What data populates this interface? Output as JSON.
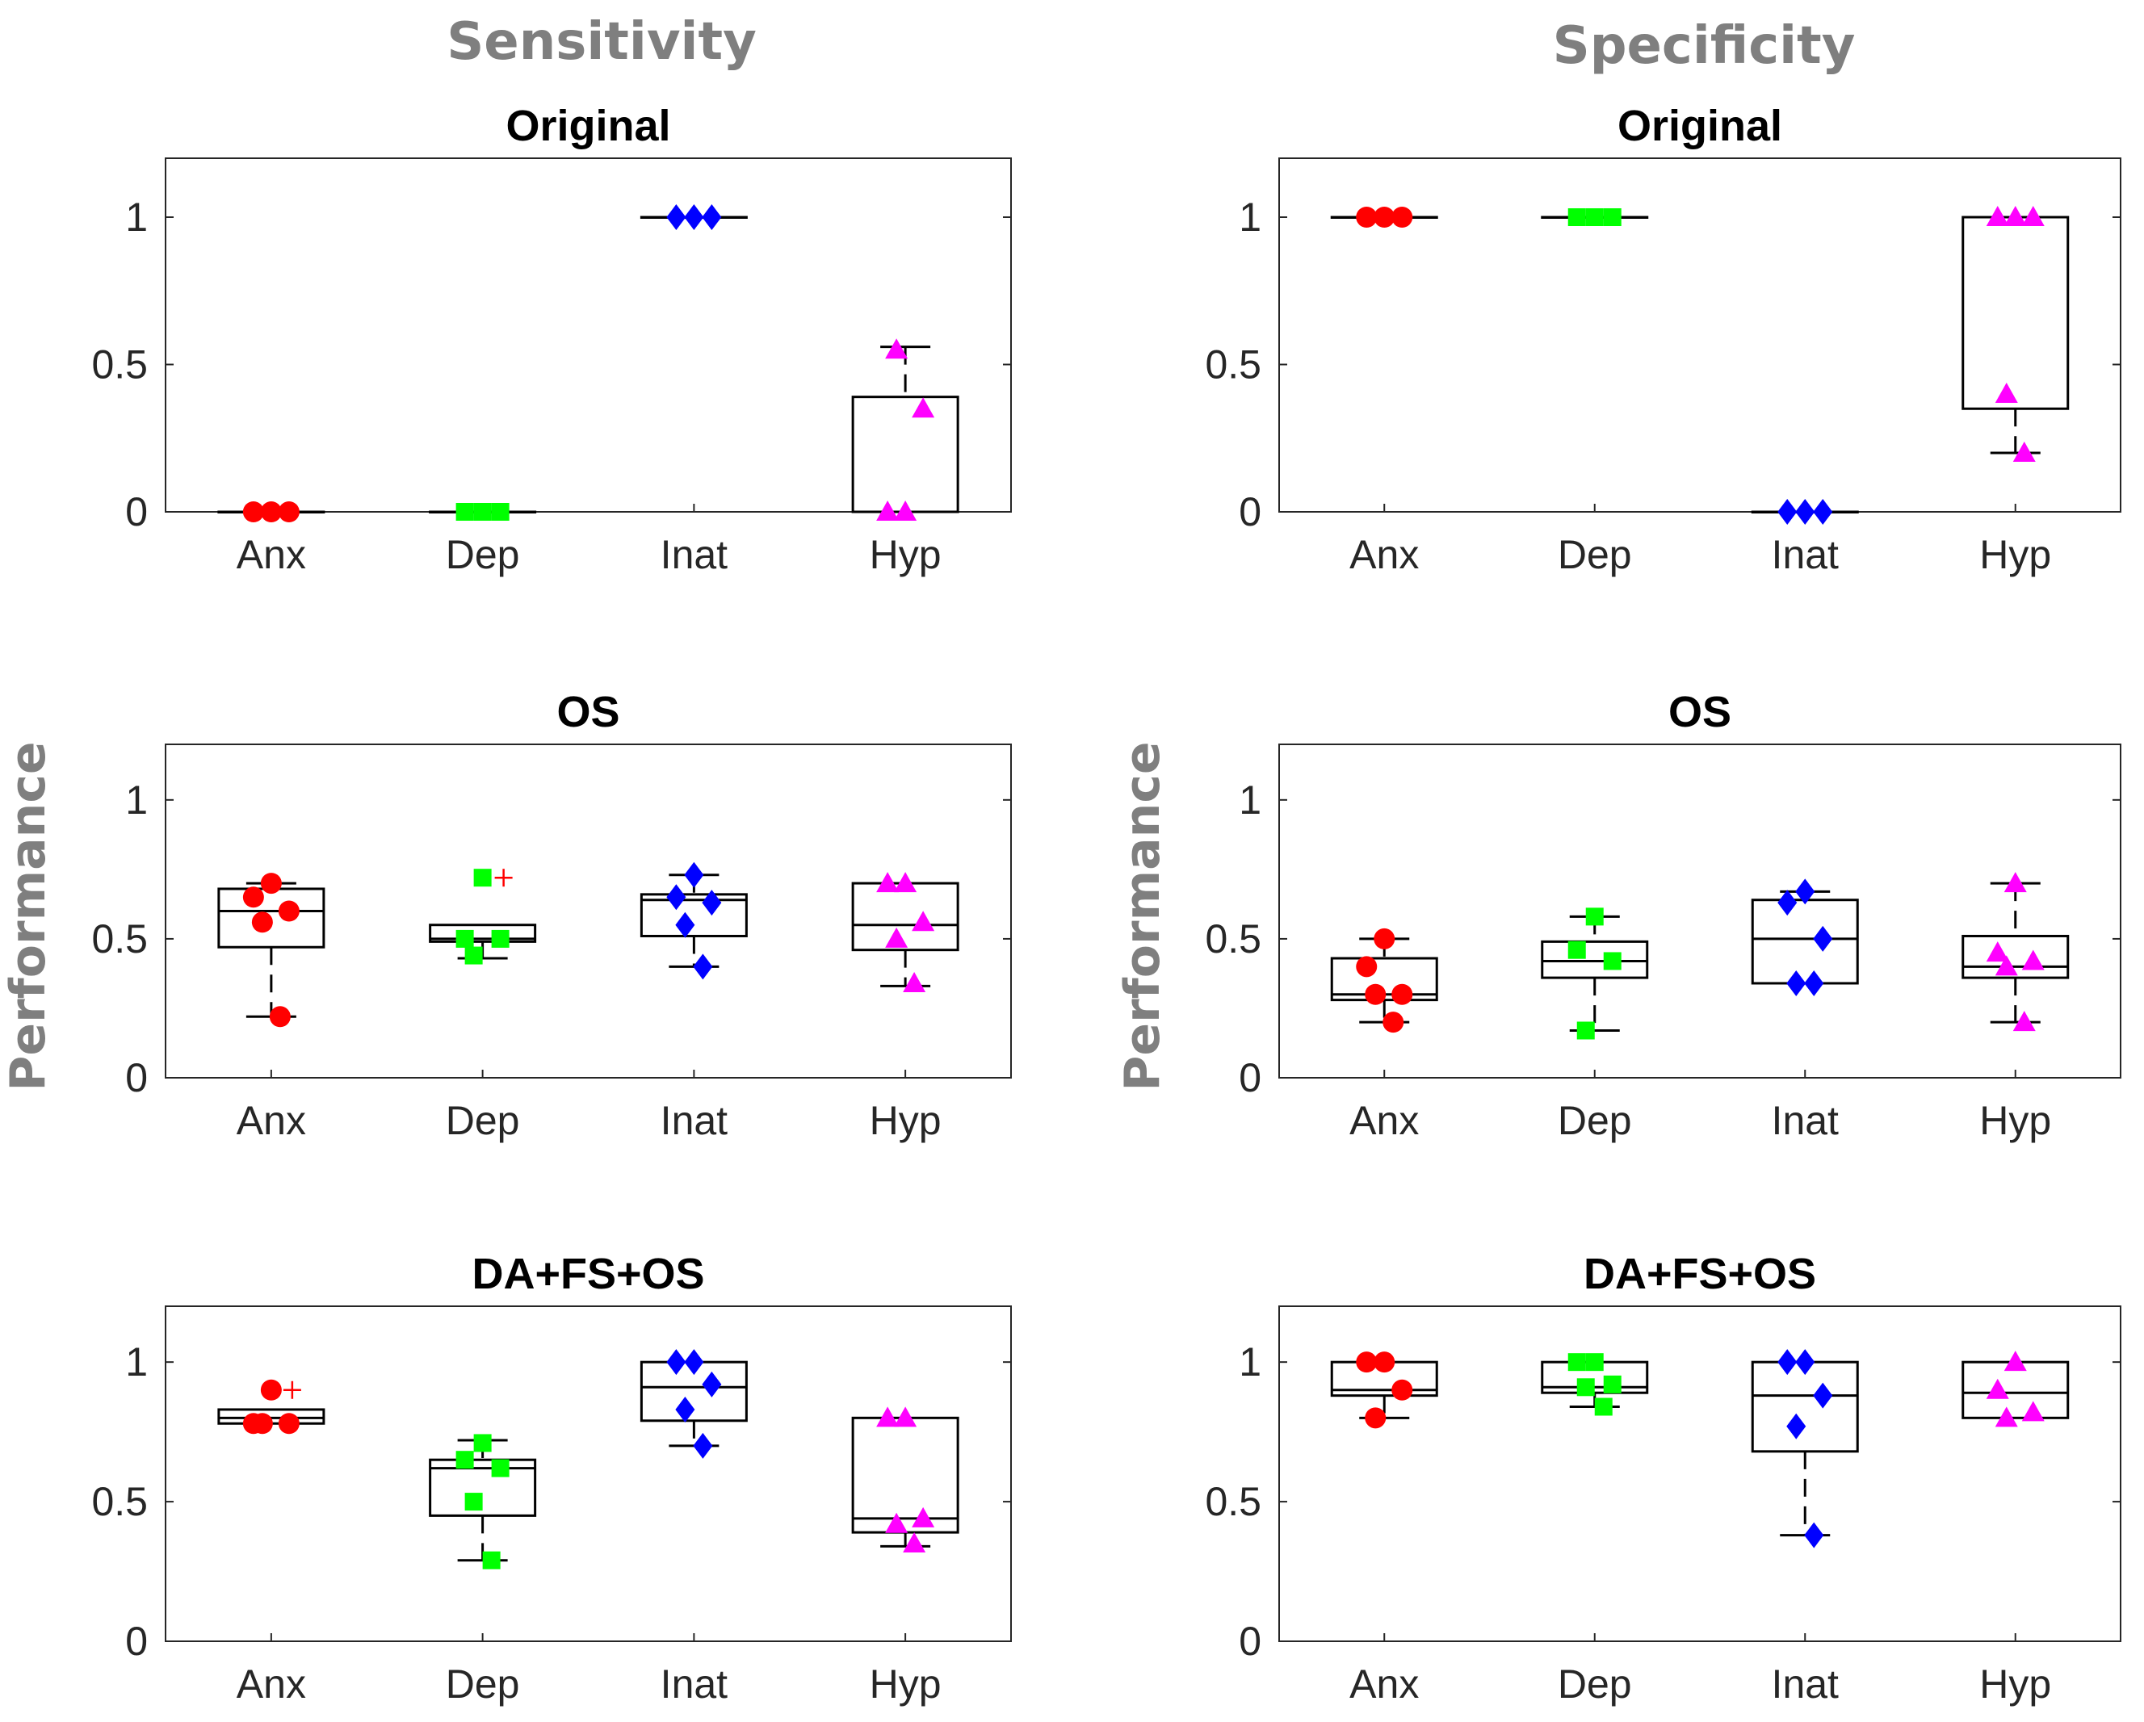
{
  "figure": {
    "column_titles": [
      "Sensitivity",
      "Specificity"
    ],
    "row_ylabels": [
      "",
      "Performance",
      ""
    ]
  },
  "chart_data": [
    {
      "type": "box",
      "title": "Original",
      "ylabel": "",
      "categories": [
        "Anx",
        "Dep",
        "Inat",
        "Hyp"
      ],
      "ylim": [
        0,
        1.2
      ],
      "yticks": [
        0,
        0.5,
        1
      ],
      "ytick_labels": [
        "0",
        "0.5",
        "1"
      ],
      "series": [
        {
          "name": "Anx",
          "color": "#ff0000",
          "marker": "circle",
          "points": [
            0,
            0,
            0
          ],
          "box": {
            "q1": 0,
            "median": 0,
            "q3": 0,
            "lower": 0,
            "upper": 0
          },
          "outliers": []
        },
        {
          "name": "Dep",
          "color": "#00ff00",
          "marker": "square",
          "points": [
            0,
            0,
            0
          ],
          "box": {
            "q1": 0,
            "median": 0,
            "q3": 0,
            "lower": 0,
            "upper": 0
          },
          "outliers": []
        },
        {
          "name": "Inat",
          "color": "#0000ff",
          "marker": "diamond",
          "points": [
            1,
            1,
            1
          ],
          "box": {
            "q1": 1,
            "median": 1,
            "q3": 1,
            "lower": 1,
            "upper": 1
          },
          "outliers": []
        },
        {
          "name": "Hyp",
          "color": "#ff00ff",
          "marker": "triangle",
          "points": [
            0,
            0,
            0.35,
            0.55
          ],
          "box": {
            "q1": 0,
            "median": 0,
            "q3": 0.39,
            "lower": 0,
            "upper": 0.56
          },
          "outliers": []
        }
      ]
    },
    {
      "type": "box",
      "title": "Original",
      "ylabel": "",
      "categories": [
        "Anx",
        "Dep",
        "Inat",
        "Hyp"
      ],
      "ylim": [
        0,
        1.2
      ],
      "yticks": [
        0,
        0.5,
        1
      ],
      "ytick_labels": [
        "0",
        "0.5",
        "1"
      ],
      "series": [
        {
          "name": "Anx",
          "color": "#ff0000",
          "marker": "circle",
          "points": [
            1,
            1,
            1
          ],
          "box": {
            "q1": 1,
            "median": 1,
            "q3": 1,
            "lower": 1,
            "upper": 1
          },
          "outliers": []
        },
        {
          "name": "Dep",
          "color": "#00ff00",
          "marker": "square",
          "points": [
            1,
            1,
            1
          ],
          "box": {
            "q1": 1,
            "median": 1,
            "q3": 1,
            "lower": 1,
            "upper": 1
          },
          "outliers": []
        },
        {
          "name": "Inat",
          "color": "#0000ff",
          "marker": "diamond",
          "points": [
            0,
            0,
            0
          ],
          "box": {
            "q1": 0,
            "median": 0,
            "q3": 0,
            "lower": 0,
            "upper": 0
          },
          "outliers": []
        },
        {
          "name": "Hyp",
          "color": "#ff00ff",
          "marker": "triangle",
          "points": [
            1,
            1,
            1,
            0.4,
            0.2
          ],
          "box": {
            "q1": 0.35,
            "median": 1,
            "q3": 1,
            "lower": 0.2,
            "upper": 1
          },
          "outliers": []
        }
      ]
    },
    {
      "type": "box",
      "title": "OS",
      "ylabel": "Performance",
      "categories": [
        "Anx",
        "Dep",
        "Inat",
        "Hyp"
      ],
      "ylim": [
        0,
        1.2
      ],
      "yticks": [
        0,
        0.5,
        1
      ],
      "ytick_labels": [
        "0",
        "0.5",
        "1"
      ],
      "series": [
        {
          "name": "Anx",
          "color": "#ff0000",
          "marker": "circle",
          "points": [
            0.7,
            0.65,
            0.6,
            0.56,
            0.22
          ],
          "box": {
            "q1": 0.47,
            "median": 0.6,
            "q3": 0.68,
            "lower": 0.22,
            "upper": 0.7
          },
          "outliers": []
        },
        {
          "name": "Dep",
          "color": "#00ff00",
          "marker": "square",
          "points": [
            0.72,
            0.5,
            0.5,
            0.44
          ],
          "box": {
            "q1": 0.49,
            "median": 0.5,
            "q3": 0.55,
            "lower": 0.43,
            "upper": 0.55
          },
          "outliers": [
            0.72
          ]
        },
        {
          "name": "Inat",
          "color": "#0000ff",
          "marker": "diamond",
          "points": [
            0.73,
            0.65,
            0.63,
            0.55,
            0.4
          ],
          "box": {
            "q1": 0.51,
            "median": 0.64,
            "q3": 0.66,
            "lower": 0.4,
            "upper": 0.73
          },
          "outliers": []
        },
        {
          "name": "Hyp",
          "color": "#ff00ff",
          "marker": "triangle",
          "points": [
            0.7,
            0.7,
            0.56,
            0.5,
            0.34
          ],
          "box": {
            "q1": 0.46,
            "median": 0.55,
            "q3": 0.7,
            "lower": 0.33,
            "upper": 0.7
          },
          "outliers": []
        }
      ]
    },
    {
      "type": "box",
      "title": "OS",
      "ylabel": "Performance",
      "categories": [
        "Anx",
        "Dep",
        "Inat",
        "Hyp"
      ],
      "ylim": [
        0,
        1.2
      ],
      "yticks": [
        0,
        0.5,
        1
      ],
      "ytick_labels": [
        "0",
        "0.5",
        "1"
      ],
      "series": [
        {
          "name": "Anx",
          "color": "#ff0000",
          "marker": "circle",
          "points": [
            0.5,
            0.4,
            0.3,
            0.3,
            0.2
          ],
          "box": {
            "q1": 0.28,
            "median": 0.3,
            "q3": 0.43,
            "lower": 0.2,
            "upper": 0.5
          },
          "outliers": []
        },
        {
          "name": "Dep",
          "color": "#00ff00",
          "marker": "square",
          "points": [
            0.58,
            0.46,
            0.42,
            0.17
          ],
          "box": {
            "q1": 0.36,
            "median": 0.42,
            "q3": 0.49,
            "lower": 0.17,
            "upper": 0.58
          },
          "outliers": []
        },
        {
          "name": "Inat",
          "color": "#0000ff",
          "marker": "diamond",
          "points": [
            0.67,
            0.63,
            0.5,
            0.34,
            0.34
          ],
          "box": {
            "q1": 0.34,
            "median": 0.5,
            "q3": 0.64,
            "lower": 0.34,
            "upper": 0.67
          },
          "outliers": []
        },
        {
          "name": "Hyp",
          "color": "#ff00ff",
          "marker": "triangle",
          "points": [
            0.7,
            0.45,
            0.42,
            0.4,
            0.2
          ],
          "box": {
            "q1": 0.36,
            "median": 0.4,
            "q3": 0.51,
            "lower": 0.2,
            "upper": 0.7
          },
          "outliers": []
        }
      ]
    },
    {
      "type": "box",
      "title": "DA+FS+OS",
      "ylabel": "",
      "categories": [
        "Anx",
        "Dep",
        "Inat",
        "Hyp"
      ],
      "ylim": [
        0,
        1.2
      ],
      "yticks": [
        0,
        0.5,
        1
      ],
      "ytick_labels": [
        "0",
        "0.5",
        "1"
      ],
      "series": [
        {
          "name": "Anx",
          "color": "#ff0000",
          "marker": "circle",
          "points": [
            0.9,
            0.78,
            0.78,
            0.78
          ],
          "box": {
            "q1": 0.78,
            "median": 0.8,
            "q3": 0.83,
            "lower": 0.78,
            "upper": 0.83
          },
          "outliers": [
            0.9
          ]
        },
        {
          "name": "Dep",
          "color": "#00ff00",
          "marker": "square",
          "points": [
            0.71,
            0.65,
            0.62,
            0.5,
            0.29
          ],
          "box": {
            "q1": 0.45,
            "median": 0.62,
            "q3": 0.65,
            "lower": 0.29,
            "upper": 0.72
          },
          "outliers": []
        },
        {
          "name": "Inat",
          "color": "#0000ff",
          "marker": "diamond",
          "points": [
            1,
            1,
            0.92,
            0.83,
            0.7
          ],
          "box": {
            "q1": 0.79,
            "median": 0.91,
            "q3": 1,
            "lower": 0.7,
            "upper": 1
          },
          "outliers": []
        },
        {
          "name": "Hyp",
          "color": "#ff00ff",
          "marker": "triangle",
          "points": [
            0.8,
            0.8,
            0.44,
            0.42,
            0.35
          ],
          "box": {
            "q1": 0.39,
            "median": 0.44,
            "q3": 0.8,
            "lower": 0.34,
            "upper": 0.8
          },
          "outliers": []
        }
      ]
    },
    {
      "type": "box",
      "title": "DA+FS+OS",
      "ylabel": "",
      "categories": [
        "Anx",
        "Dep",
        "Inat",
        "Hyp"
      ],
      "ylim": [
        0,
        1.2
      ],
      "yticks": [
        0,
        0.5,
        1
      ],
      "ytick_labels": [
        "0",
        "0.5",
        "1"
      ],
      "series": [
        {
          "name": "Anx",
          "color": "#ff0000",
          "marker": "circle",
          "points": [
            1,
            1,
            0.9,
            0.8
          ],
          "box": {
            "q1": 0.88,
            "median": 0.9,
            "q3": 1,
            "lower": 0.8,
            "upper": 1
          },
          "outliers": []
        },
        {
          "name": "Dep",
          "color": "#00ff00",
          "marker": "square",
          "points": [
            1,
            1,
            0.92,
            0.91,
            0.84
          ],
          "box": {
            "q1": 0.89,
            "median": 0.91,
            "q3": 1,
            "lower": 0.84,
            "upper": 1
          },
          "outliers": []
        },
        {
          "name": "Inat",
          "color": "#0000ff",
          "marker": "diamond",
          "points": [
            1,
            1,
            0.88,
            0.77,
            0.38
          ],
          "box": {
            "q1": 0.68,
            "median": 0.88,
            "q3": 1,
            "lower": 0.38,
            "upper": 1
          },
          "outliers": []
        },
        {
          "name": "Hyp",
          "color": "#ff00ff",
          "marker": "triangle",
          "points": [
            1,
            0.9,
            0.82,
            0.8
          ],
          "box": {
            "q1": 0.8,
            "median": 0.89,
            "q3": 1,
            "lower": 0.8,
            "upper": 1
          },
          "outliers": []
        }
      ]
    }
  ]
}
